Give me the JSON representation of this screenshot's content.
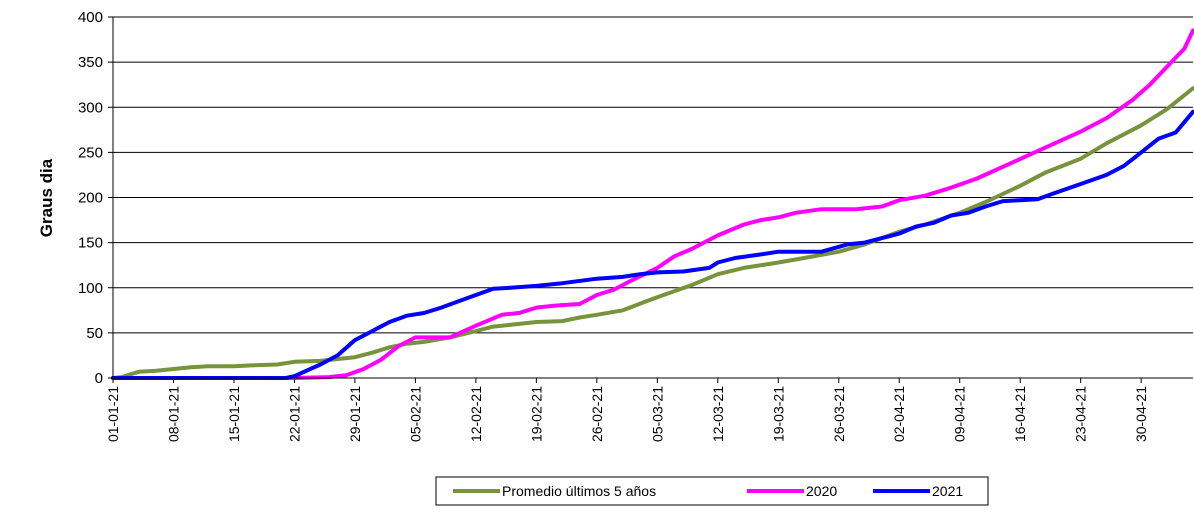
{
  "chart_data": {
    "type": "line",
    "title": "",
    "xlabel": "",
    "ylabel": "Graus dia",
    "ylim": [
      0,
      400
    ],
    "yticks": [
      "0",
      "50",
      "100",
      "150",
      "200",
      "250",
      "300",
      "350",
      "400"
    ],
    "xlim": [
      "01-01-21",
      "06-05-21"
    ],
    "xticks": [
      "01-01-21",
      "08-01-21",
      "15-01-21",
      "22-01-21",
      "29-01-21",
      "05-02-21",
      "12-02-21",
      "19-02-21",
      "26-02-21",
      "05-03-21",
      "12-03-21",
      "19-03-21",
      "26-03-21",
      "02-04-21",
      "09-04-21",
      "16-04-21",
      "23-04-21",
      "30-04-21"
    ],
    "grid": "horizontal",
    "legend_position": "bottom",
    "series": [
      {
        "name": "Promedio últimos 5 años",
        "color": "#77933c",
        "points": [
          [
            "01-01-21",
            0
          ],
          [
            "02-01-21",
            1
          ],
          [
            "03-01-21",
            4
          ],
          [
            "04-01-21",
            7
          ],
          [
            "06-01-21",
            8
          ],
          [
            "08-01-21",
            10
          ],
          [
            "10-01-21",
            12
          ],
          [
            "12-01-21",
            13
          ],
          [
            "15-01-21",
            13
          ],
          [
            "17-01-21",
            14
          ],
          [
            "20-01-21",
            15
          ],
          [
            "22-01-21",
            18
          ],
          [
            "25-01-21",
            19
          ],
          [
            "27-01-21",
            21
          ],
          [
            "29-01-21",
            23
          ],
          [
            "31-01-21",
            28
          ],
          [
            "02-02-21",
            34
          ],
          [
            "04-02-21",
            38
          ],
          [
            "06-02-21",
            40
          ],
          [
            "09-02-21",
            45
          ],
          [
            "12-02-21",
            52
          ],
          [
            "14-02-21",
            57
          ],
          [
            "17-02-21",
            60
          ],
          [
            "19-02-21",
            62
          ],
          [
            "22-02-21",
            63
          ],
          [
            "24-02-21",
            67
          ],
          [
            "26-02-21",
            70
          ],
          [
            "01-03-21",
            75
          ],
          [
            "04-03-21",
            86
          ],
          [
            "06-03-21",
            93
          ],
          [
            "09-03-21",
            103
          ],
          [
            "12-03-21",
            115
          ],
          [
            "15-03-21",
            122
          ],
          [
            "19-03-21",
            128
          ],
          [
            "22-03-21",
            133
          ],
          [
            "26-03-21",
            140
          ],
          [
            "29-03-21",
            148
          ],
          [
            "02-04-21",
            162
          ],
          [
            "05-04-21",
            170
          ],
          [
            "09-04-21",
            183
          ],
          [
            "12-04-21",
            195
          ],
          [
            "16-04-21",
            213
          ],
          [
            "19-04-21",
            228
          ],
          [
            "23-04-21",
            243
          ],
          [
            "26-04-21",
            260
          ],
          [
            "30-04-21",
            280
          ],
          [
            "03-05-21",
            298
          ],
          [
            "06-05-21",
            321
          ]
        ]
      },
      {
        "name": "2020",
        "color": "#ff00ff",
        "points": [
          [
            "01-01-21",
            0
          ],
          [
            "22-01-21",
            0
          ],
          [
            "26-01-21",
            1
          ],
          [
            "28-01-21",
            3
          ],
          [
            "30-01-21",
            10
          ],
          [
            "01-02-21",
            20
          ],
          [
            "03-02-21",
            35
          ],
          [
            "05-02-21",
            45
          ],
          [
            "09-02-21",
            45
          ],
          [
            "12-02-21",
            58
          ],
          [
            "15-02-21",
            70
          ],
          [
            "17-02-21",
            72
          ],
          [
            "19-02-21",
            78
          ],
          [
            "21-02-21",
            80
          ],
          [
            "24-02-21",
            82
          ],
          [
            "26-02-21",
            92
          ],
          [
            "28-02-21",
            98
          ],
          [
            "02-03-21",
            108
          ],
          [
            "05-03-21",
            122
          ],
          [
            "07-03-21",
            135
          ],
          [
            "09-03-21",
            143
          ],
          [
            "12-03-21",
            158
          ],
          [
            "15-03-21",
            170
          ],
          [
            "17-03-21",
            175
          ],
          [
            "19-03-21",
            178
          ],
          [
            "21-03-21",
            183
          ],
          [
            "24-03-21",
            187
          ],
          [
            "28-03-21",
            187
          ],
          [
            "31-03-21",
            190
          ],
          [
            "02-04-21",
            197
          ],
          [
            "05-04-21",
            202
          ],
          [
            "08-04-21",
            211
          ],
          [
            "11-04-21",
            221
          ],
          [
            "14-04-21",
            234
          ],
          [
            "17-04-21",
            247
          ],
          [
            "20-04-21",
            260
          ],
          [
            "23-04-21",
            273
          ],
          [
            "26-04-21",
            288
          ],
          [
            "29-04-21",
            308
          ],
          [
            "01-05-21",
            325
          ],
          [
            "03-05-21",
            345
          ],
          [
            "05-05-21",
            365
          ],
          [
            "06-05-21",
            385
          ]
        ]
      },
      {
        "name": "2021",
        "color": "#0000ff",
        "points": [
          [
            "01-01-21",
            0
          ],
          [
            "21-01-21",
            0
          ],
          [
            "22-01-21",
            2
          ],
          [
            "25-01-21",
            15
          ],
          [
            "27-01-21",
            25
          ],
          [
            "29-01-21",
            42
          ],
          [
            "31-01-21",
            52
          ],
          [
            "02-02-21",
            62
          ],
          [
            "04-02-21",
            69
          ],
          [
            "06-02-21",
            72
          ],
          [
            "08-02-21",
            78
          ],
          [
            "10-02-21",
            85
          ],
          [
            "12-02-21",
            92
          ],
          [
            "14-02-21",
            99
          ],
          [
            "16-02-21",
            100
          ],
          [
            "19-02-21",
            102
          ],
          [
            "22-02-21",
            105
          ],
          [
            "26-02-21",
            110
          ],
          [
            "01-03-21",
            112
          ],
          [
            "03-03-21",
            115
          ],
          [
            "05-03-21",
            117
          ],
          [
            "08-03-21",
            118
          ],
          [
            "11-03-21",
            122
          ],
          [
            "12-03-21",
            128
          ],
          [
            "14-03-21",
            133
          ],
          [
            "17-03-21",
            137
          ],
          [
            "19-03-21",
            140
          ],
          [
            "24-03-21",
            140
          ],
          [
            "27-03-21",
            148
          ],
          [
            "29-03-21",
            150
          ],
          [
            "31-03-21",
            155
          ],
          [
            "02-04-21",
            160
          ],
          [
            "04-04-21",
            168
          ],
          [
            "06-04-21",
            172
          ],
          [
            "08-04-21",
            180
          ],
          [
            "10-04-21",
            183
          ],
          [
            "12-04-21",
            190
          ],
          [
            "14-04-21",
            196
          ],
          [
            "16-04-21",
            197
          ],
          [
            "18-04-21",
            198
          ],
          [
            "20-04-21",
            205
          ],
          [
            "23-04-21",
            215
          ],
          [
            "26-04-21",
            225
          ],
          [
            "28-04-21",
            235
          ],
          [
            "30-04-21",
            250
          ],
          [
            "02-05-21",
            265
          ],
          [
            "04-05-21",
            272
          ],
          [
            "06-05-21",
            295
          ]
        ]
      }
    ]
  }
}
